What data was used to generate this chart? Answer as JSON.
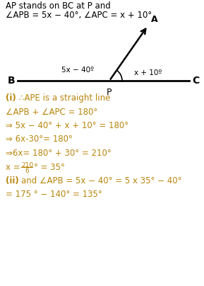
{
  "title_line1": "AP stands on BC at P and",
  "title_line2": "∠APB = 5x − 40°, ∠APC = x + 10°",
  "label_B": "B",
  "label_C": "C",
  "label_P": "P",
  "label_A": "A",
  "label_left_angle": "5x − 40º",
  "label_right_angle": "x + 10º",
  "text_color": "#b8860b",
  "line_color": "#000000",
  "bg_color": "#ffffff",
  "fig_width": 2.89,
  "fig_height": 4.04,
  "dpi": 100
}
